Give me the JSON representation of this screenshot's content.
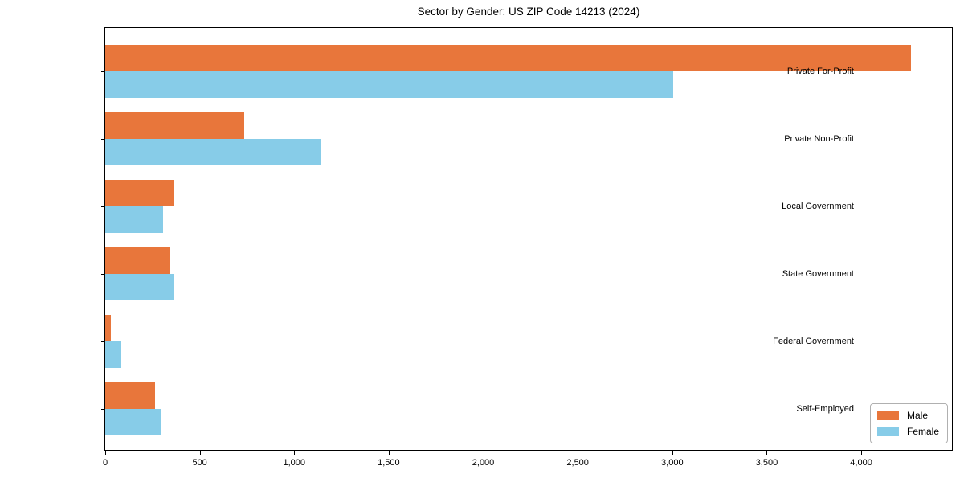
{
  "chart_data": {
    "type": "bar",
    "orientation": "horizontal",
    "title": "Sector by Gender: US ZIP Code 14213 (2024)",
    "categories": [
      "Private For-Profit",
      "Private Non-Profit",
      "Local Government",
      "State Government",
      "Federal Government",
      "Self-Employed"
    ],
    "series": [
      {
        "name": "Male",
        "color": "#E8763B",
        "values": [
          4265,
          735,
          365,
          340,
          30,
          265
        ]
      },
      {
        "name": "Female",
        "color": "#87CCE8",
        "values": [
          3005,
          1140,
          305,
          365,
          85,
          295
        ]
      }
    ],
    "xlabel": "",
    "ylabel": "",
    "xlim": [
      0,
      4480
    ],
    "xticks": [
      0,
      500,
      1000,
      1500,
      2000,
      2500,
      3000,
      3500,
      4000
    ],
    "xtick_labels": [
      "0",
      "500",
      "1,000",
      "1,500",
      "2,000",
      "2,500",
      "3,000",
      "3,500",
      "4,000"
    ],
    "grid": false,
    "legend": {
      "position": "lower right"
    }
  }
}
